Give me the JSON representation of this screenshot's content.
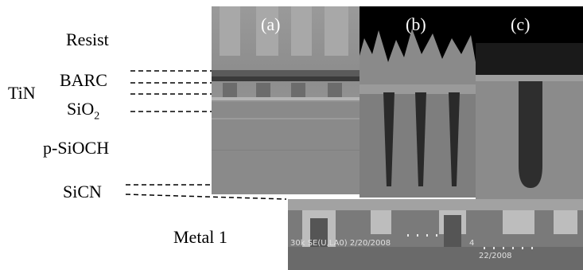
{
  "layers": {
    "resist": "Resist",
    "tin": "TiN",
    "barc": "BARC",
    "sio2_base": "SiO",
    "sio2_sub": "2",
    "psioch": "p-SiOCH",
    "sicn": "SiCN",
    "metal1": "Metal 1"
  },
  "panels": {
    "a": "(a)",
    "b": "(b)",
    "c": "(c)"
  },
  "micrograph": {
    "info": "30k SE(U,LA0) 2/20/2008",
    "info_fragment": "4",
    "info_c": "22/2008"
  },
  "colors": {
    "black": "#000000",
    "sem_gray": "#8e8e8e",
    "dash": "#000000"
  }
}
